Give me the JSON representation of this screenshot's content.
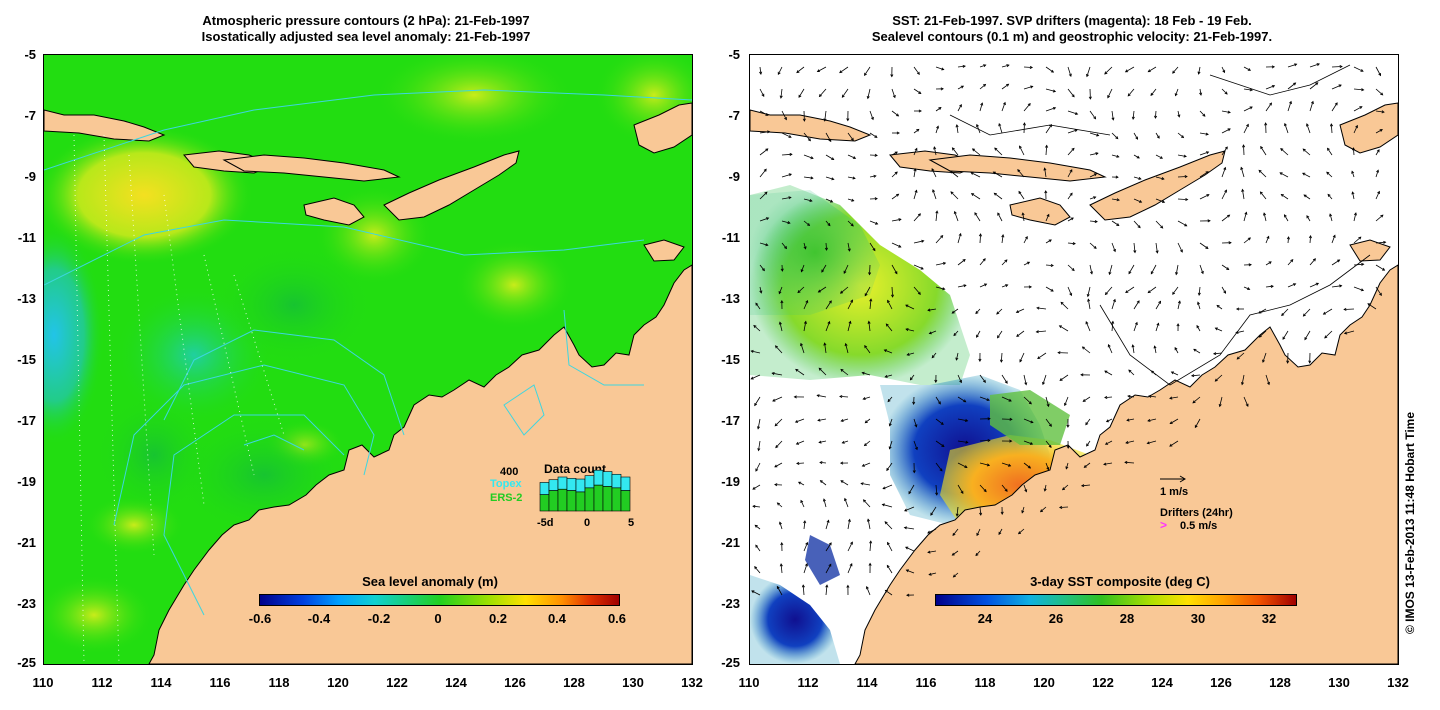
{
  "left": {
    "title_line1": "Atmospheric pressure contours (2 hPa): 21-Feb-1997",
    "title_line2": "Isostatically adjusted sea level anomaly: 21-Feb-1997",
    "colorbar": {
      "title": "Sea level anomaly (m)",
      "ticks": [
        "-0.6",
        "-0.4",
        "-0.2",
        "0",
        "0.2",
        "0.4",
        "0.6"
      ]
    },
    "data_count": {
      "title": "Data count",
      "max_label": "400",
      "topex_label": "Topex",
      "ers_label": "ERS-2",
      "axis_labels": [
        "-5d",
        "0",
        "5"
      ],
      "topex_values": [
        210,
        230,
        250,
        240,
        235,
        260,
        300,
        290,
        270,
        250
      ],
      "ers_values": [
        120,
        150,
        160,
        150,
        140,
        170,
        190,
        180,
        170,
        150
      ],
      "max_value": 400,
      "colors": {
        "topex": "#33e8f0",
        "ers": "#22cc22"
      }
    }
  },
  "right": {
    "title_line1": "SST: 21-Feb-1997. SVP drifters (magenta): 18 Feb - 19 Feb.",
    "title_line2": "Sealevel contours (0.1 m) and geostrophic velocity: 21-Feb-1997.",
    "colorbar": {
      "title": "3-day SST composite (deg C)",
      "ticks": [
        "24",
        "26",
        "28",
        "30",
        "32"
      ]
    },
    "velocity_scale_label": "1 m/s",
    "drifters_label": "Drifters (24hr)",
    "drifter_speed_label": "0.5 m/s",
    "drifter_marker": ">"
  },
  "axes": {
    "y_ticks": [
      "-5",
      "-7",
      "-9",
      "-11",
      "-13",
      "-15",
      "-17",
      "-19",
      "-21",
      "-23",
      "-25"
    ],
    "x_ticks": [
      "110",
      "112",
      "114",
      "116",
      "118",
      "120",
      "122",
      "124",
      "126",
      "128",
      "130",
      "132"
    ]
  },
  "credit": "© IMOS 13-Feb-2013 11:48 Hobart Time",
  "colors": {
    "land": "#f9c896",
    "ocean_anomaly": "#22dd11",
    "contour_cyan": "#3dd6e0",
    "drifter": "#ff33ff"
  }
}
